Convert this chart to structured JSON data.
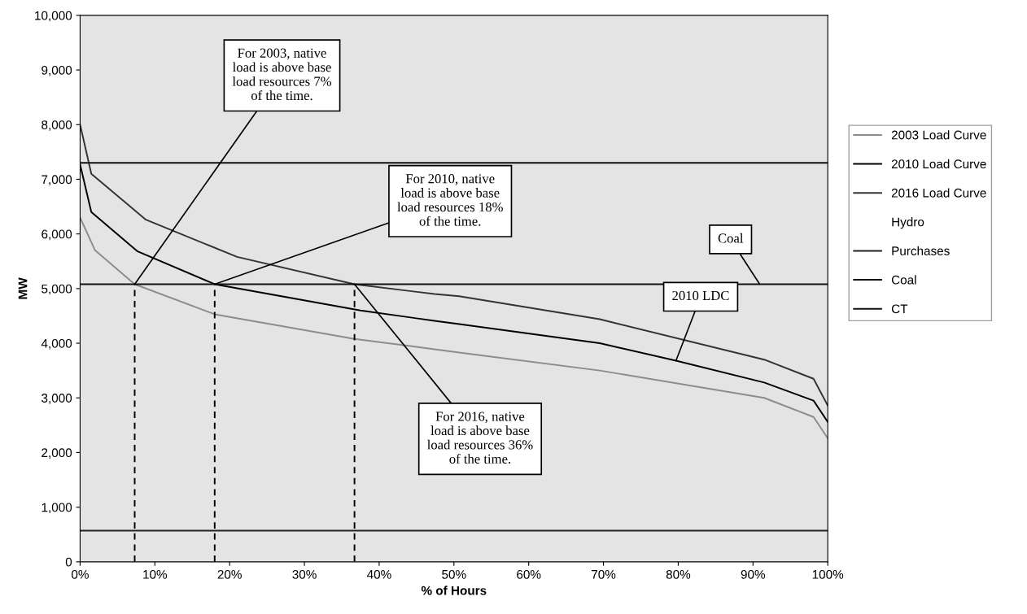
{
  "chart_data": {
    "type": "line",
    "xlabel": "% of Hours",
    "ylabel": "MW",
    "xlim": [
      0,
      100
    ],
    "xticks": [
      {
        "value": 0,
        "label": "0%"
      },
      {
        "value": 10,
        "label": "10%"
      },
      {
        "value": 20,
        "label": "20%"
      },
      {
        "value": 30,
        "label": "30%"
      },
      {
        "value": 40,
        "label": "40%"
      },
      {
        "value": 50,
        "label": "50%"
      },
      {
        "value": 60,
        "label": "60%"
      },
      {
        "value": 70,
        "label": "70%"
      },
      {
        "value": 80,
        "label": "80%"
      },
      {
        "value": 90,
        "label": "90%"
      },
      {
        "value": 100,
        "label": "100%"
      }
    ],
    "ylim": [
      0,
      10000
    ],
    "yticks": [
      0,
      {
        "value": 1000,
        "label": "1,000"
      },
      {
        "value": 2000,
        "label": "2,000"
      },
      {
        "value": 3000,
        "label": "3,000"
      },
      {
        "value": 4000,
        "label": "4,000"
      },
      {
        "value": 5000,
        "label": "5,000"
      },
      {
        "value": 6000,
        "label": "6,000"
      },
      {
        "value": 7000,
        "label": "7,000"
      },
      {
        "value": 8000,
        "label": "8,000"
      },
      {
        "value": 9000,
        "label": "9,000"
      },
      {
        "value": 10000,
        "label": "10,000"
      }
    ],
    "grid": false,
    "legend": "right",
    "marker": "none",
    "line_style": "solid",
    "series": [
      {
        "name": "2003 Load Curve",
        "color": "#8c8c8c",
        "x": [
          0,
          2,
          7.3,
          18,
          36.7,
          47.4,
          50.7,
          69.5,
          91.5,
          98.1,
          100
        ],
        "values": [
          6300,
          5700,
          5080,
          4530,
          4080,
          3890,
          3830,
          3500,
          3000,
          2650,
          2260
        ]
      },
      {
        "name": "2010 Load Curve",
        "color": "#000000",
        "x": [
          0,
          1.5,
          7.7,
          18,
          37.5,
          47.4,
          50.7,
          69.5,
          79.7,
          91.5,
          98.1,
          100
        ],
        "values": [
          7270,
          6400,
          5680,
          5080,
          4600,
          4410,
          4350,
          4000,
          3680,
          3280,
          2950,
          2560
        ]
      },
      {
        "name": "2016 Load Curve",
        "color": "#333333",
        "x": [
          0,
          1.5,
          8.8,
          21,
          36.7,
          47.4,
          50.7,
          69.5,
          91.5,
          98.1,
          100
        ],
        "values": [
          8000,
          7100,
          6260,
          5580,
          5080,
          4900,
          4860,
          4440,
          3700,
          3350,
          2860
        ]
      },
      {
        "name": "Hydro"
      },
      {
        "name": "Purchases",
        "color": "#222222",
        "x": [
          0,
          100
        ],
        "values": [
          570,
          570
        ]
      },
      {
        "name": "Coal",
        "color": "#111111",
        "x": [
          0,
          100
        ],
        "values": [
          5080,
          5080
        ]
      },
      {
        "name": "CT",
        "color": "#111111",
        "x": [
          0,
          100
        ],
        "values": [
          7300,
          7300
        ]
      },
      {
        "color": "#000000",
        "line_style": "dashed",
        "x": [
          7.3,
          7.3
        ],
        "values": [
          0,
          5080
        ]
      },
      {
        "color": "#000000",
        "line_style": "dashed",
        "x": [
          18,
          18
        ],
        "values": [
          0,
          5080
        ]
      },
      {
        "color": "#000000",
        "line_style": "dashed",
        "x": [
          36.7,
          36.7
        ],
        "values": [
          0,
          5080
        ]
      }
    ],
    "annotations": [
      {
        "text": "For 2003, native\nload is above base\nload resources 7%\nof the time.",
        "x": 7.3,
        "y": 5080
      },
      {
        "text": "For 2010, native\nload is above base\nload resources 18%\nof the time.",
        "x": 18,
        "y": 5080
      },
      {
        "text": "For 2016, native\nload is above base\nload resources 36%\nof the time.",
        "x": 36.7,
        "y": 5080
      },
      {
        "text": "Coal",
        "x": 90.9,
        "y": 5080
      },
      {
        "text": "2010 LDC",
        "x": 79.7,
        "y": 3680
      }
    ]
  }
}
